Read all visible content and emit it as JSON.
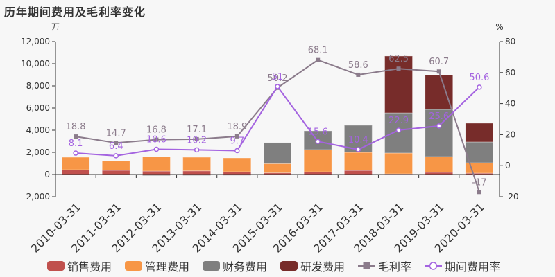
{
  "title": "历年期间费用及毛利率变化",
  "chart_data": {
    "type": "bar",
    "title": "历年期间费用及毛利率变化",
    "left_axis": {
      "unit": "万",
      "ylim": [
        -2000,
        12000
      ],
      "ticks": [
        "-2,000",
        "0",
        "2,000",
        "4,000",
        "6,000",
        "8,000",
        "10,000",
        "12,000"
      ]
    },
    "right_axis": {
      "unit": "%",
      "ylim": [
        -20,
        80
      ],
      "ticks": [
        "-20",
        "0",
        "20",
        "40",
        "60",
        "80"
      ]
    },
    "categories": [
      "2010-03-31",
      "2011-03-31",
      "2012-03-31",
      "2013-03-31",
      "2014-03-31",
      "2015-03-31",
      "2016-03-31",
      "2017-03-31",
      "2018-03-31",
      "2019-03-31",
      "2020-03-31"
    ],
    "series": [
      {
        "name": "销售费用",
        "kind": "stacked-bar",
        "color": "#c0504d",
        "values": [
          430,
          380,
          310,
          330,
          250,
          150,
          240,
          370,
          60,
          200,
          120
        ]
      },
      {
        "name": "管理费用",
        "kind": "stacked-bar",
        "color": "#f79646",
        "values": [
          1130,
          870,
          1310,
          1230,
          1250,
          830,
          2010,
          1630,
          1880,
          1420,
          940
        ]
      },
      {
        "name": "财务费用",
        "kind": "stacked-bar",
        "color": "#7f7f7f",
        "values": [
          -60,
          -40,
          -100,
          -90,
          -80,
          1900,
          1690,
          2440,
          3620,
          4260,
          1880
        ]
      },
      {
        "name": "研发费用",
        "kind": "stacked-bar",
        "color": "#772c2a",
        "values": [
          0,
          0,
          0,
          0,
          0,
          0,
          0,
          0,
          5130,
          3120,
          1690
        ]
      },
      {
        "name": "毛利率",
        "kind": "line",
        "axis": "right",
        "color": "#8b7b8b",
        "marker": "square",
        "values": [
          18.8,
          14.7,
          16.8,
          17.1,
          18.9,
          50.2,
          68.1,
          58.6,
          62.5,
          60.7,
          -17
        ]
      },
      {
        "name": "期间费用率",
        "kind": "line",
        "axis": "right",
        "color": "#a463e0",
        "marker": "circle",
        "values": [
          8.1,
          6.4,
          10.6,
          10.2,
          9.7,
          51,
          15.6,
          10.4,
          22.9,
          25.6,
          50.6
        ]
      }
    ],
    "grid": false,
    "legend_position": "bottom"
  },
  "legend": [
    {
      "label": "销售费用",
      "color": "#c0504d",
      "type": "box"
    },
    {
      "label": "管理费用",
      "color": "#f79646",
      "type": "box"
    },
    {
      "label": "财务费用",
      "color": "#7f7f7f",
      "type": "box"
    },
    {
      "label": "研发费用",
      "color": "#772c2a",
      "type": "box"
    },
    {
      "label": "毛利率",
      "color": "#8b7b8b",
      "type": "line-square"
    },
    {
      "label": "期间费用率",
      "color": "#a463e0",
      "type": "line-circle"
    }
  ]
}
